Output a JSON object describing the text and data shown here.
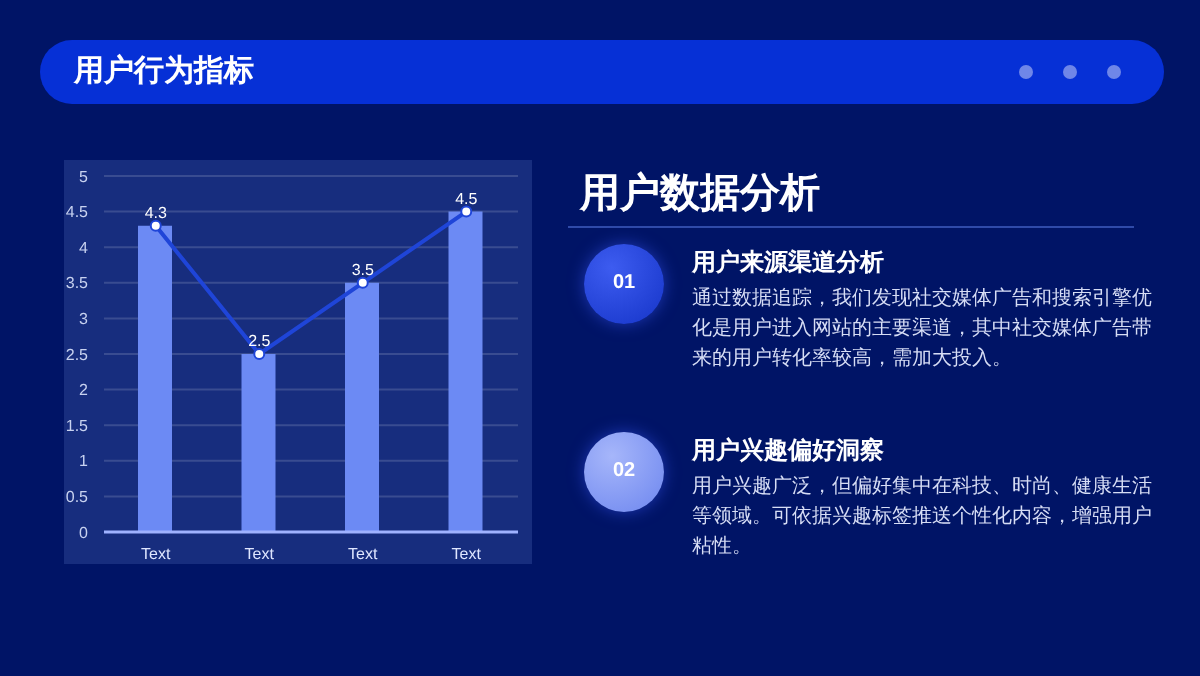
{
  "chart_data": [
    {
      "type": "bar",
      "title": "用户行为指标",
      "categories": [
        "Text",
        "Text",
        "Text",
        "Text"
      ],
      "series": [
        {
          "type": "bar",
          "color": "#6c8af4",
          "values": [
            4.3,
            2.5,
            3.5,
            4.5
          ]
        },
        {
          "type": "line",
          "color": "#1f45d8",
          "values": [
            4.3,
            2.5,
            3.5,
            4.5
          ],
          "value_labels": [
            "4.3",
            "2.5",
            "3.5",
            "4.5"
          ]
        }
      ],
      "ylim": [
        0,
        5
      ],
      "yticks": [
        0,
        0.5,
        1,
        1.5,
        2,
        2.5,
        3,
        3.5,
        4,
        4.5,
        5
      ],
      "grid": "y",
      "marker": "circle",
      "line_style": "solid"
    },
    {
      "type": "other",
      "title": "用户数据分析",
      "annotations": [
        "01",
        "用户来源渠道分析",
        "通过数据追踪，我们发现社交媒体广告和搜索引擎优化是用户进入网站的主要渠道，其中社交媒体广告带来的用户转化率较高，需加大投入。",
        "02",
        "用户兴趣偏好洞察",
        "用户兴趣广泛，但偏好集中在科技、时尚、健康生活等领域。可依据兴趣标签推送个性化内容，增强用户粘性。"
      ]
    }
  ]
}
